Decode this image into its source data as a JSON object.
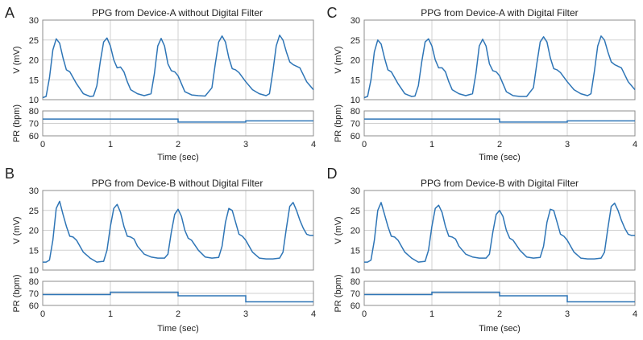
{
  "figure": {
    "colors": {
      "line": "#2e75b6",
      "grid": "#d0d0d0",
      "axis": "#8c8c8c",
      "text": "#222222"
    }
  },
  "chart_data": [
    {
      "panel": "A",
      "type": "line",
      "title": "PPG from Device-A without Digital Filter",
      "ppg": {
        "ylabel": "V (mV)",
        "ylim": [
          10,
          30
        ],
        "yticks": [
          10,
          15,
          20,
          25,
          30
        ],
        "x": [
          0,
          0.05,
          0.1,
          0.15,
          0.2,
          0.25,
          0.3,
          0.35,
          0.4,
          0.5,
          0.6,
          0.7,
          0.75,
          0.8,
          0.85,
          0.9,
          0.95,
          1.0,
          1.05,
          1.1,
          1.15,
          1.2,
          1.25,
          1.3,
          1.4,
          1.5,
          1.6,
          1.65,
          1.7,
          1.75,
          1.8,
          1.85,
          1.9,
          1.95,
          2.0,
          2.05,
          2.1,
          2.2,
          2.3,
          2.4,
          2.5,
          2.55,
          2.6,
          2.65,
          2.7,
          2.75,
          2.8,
          2.85,
          2.9,
          3.0,
          3.1,
          3.2,
          3.3,
          3.35,
          3.4,
          3.45,
          3.5,
          3.55,
          3.6,
          3.65,
          3.7,
          3.8,
          3.9,
          4.0
        ],
        "values": [
          10.5,
          10.8,
          15.5,
          22.5,
          25.3,
          24.2,
          20.5,
          17.5,
          17.0,
          14.0,
          11.5,
          10.8,
          10.9,
          13.5,
          19.5,
          24.5,
          25.5,
          23.5,
          20.0,
          18.0,
          18.2,
          17.0,
          14.5,
          12.5,
          11.5,
          11.0,
          11.5,
          16.5,
          23.5,
          25.4,
          23.5,
          19.0,
          17.3,
          17.0,
          16.0,
          14.0,
          12.0,
          11.2,
          11.0,
          10.9,
          13.0,
          19.0,
          24.5,
          26.0,
          24.5,
          20.5,
          17.8,
          17.5,
          16.8,
          14.5,
          12.5,
          11.5,
          11.0,
          11.5,
          17.0,
          23.5,
          26.2,
          25.0,
          22.0,
          19.5,
          18.8,
          18.0,
          14.5,
          12.5
        ]
      },
      "pr": {
        "ylabel": "PR (bpm)",
        "ylim": [
          60,
          80
        ],
        "yticks": [
          60,
          70,
          80
        ],
        "segments": [
          {
            "from": 0,
            "to": 2,
            "value": 73.5
          },
          {
            "from": 2,
            "to": 3,
            "value": 71
          },
          {
            "from": 3,
            "to": 4,
            "value": 72
          }
        ]
      },
      "xlabel": "Time (sec)",
      "xlim": [
        0,
        4
      ],
      "xticks": [
        0,
        1,
        2,
        3,
        4
      ]
    },
    {
      "panel": "C",
      "type": "line",
      "title": "PPG from Device-A with Digital Filter",
      "ppg": {
        "ylabel": "V (mV)",
        "ylim": [
          10,
          30
        ],
        "yticks": [
          10,
          15,
          20,
          25,
          30
        ],
        "x": [
          0,
          0.05,
          0.1,
          0.15,
          0.2,
          0.25,
          0.3,
          0.35,
          0.4,
          0.5,
          0.6,
          0.7,
          0.75,
          0.8,
          0.85,
          0.9,
          0.95,
          1.0,
          1.05,
          1.1,
          1.15,
          1.2,
          1.25,
          1.3,
          1.4,
          1.5,
          1.6,
          1.65,
          1.7,
          1.75,
          1.8,
          1.85,
          1.9,
          1.95,
          2.0,
          2.05,
          2.1,
          2.2,
          2.3,
          2.4,
          2.5,
          2.55,
          2.6,
          2.65,
          2.7,
          2.75,
          2.8,
          2.85,
          2.9,
          3.0,
          3.1,
          3.2,
          3.3,
          3.35,
          3.4,
          3.45,
          3.5,
          3.55,
          3.6,
          3.65,
          3.7,
          3.8,
          3.9,
          4.0
        ],
        "values": [
          10.5,
          10.8,
          15.0,
          22.0,
          25.0,
          24.0,
          20.5,
          17.5,
          17.0,
          14.0,
          11.5,
          10.8,
          10.9,
          13.5,
          19.5,
          24.5,
          25.3,
          23.5,
          20.0,
          18.0,
          18.0,
          17.0,
          14.5,
          12.5,
          11.5,
          11.0,
          11.5,
          16.5,
          23.5,
          25.2,
          23.5,
          19.0,
          17.3,
          17.0,
          16.0,
          14.0,
          12.0,
          11.0,
          10.8,
          10.8,
          13.0,
          19.0,
          24.5,
          25.8,
          24.5,
          20.5,
          17.8,
          17.5,
          16.8,
          14.5,
          12.5,
          11.5,
          11.0,
          11.5,
          17.0,
          23.5,
          26.0,
          25.0,
          22.0,
          19.5,
          18.8,
          18.0,
          14.5,
          12.5
        ]
      },
      "pr": {
        "ylabel": "PR (bpm)",
        "ylim": [
          60,
          80
        ],
        "yticks": [
          60,
          70,
          80
        ],
        "segments": [
          {
            "from": 0,
            "to": 2,
            "value": 73.5
          },
          {
            "from": 2,
            "to": 3,
            "value": 71
          },
          {
            "from": 3,
            "to": 4,
            "value": 72
          }
        ]
      },
      "xlabel": "Time (sec)",
      "xlim": [
        0,
        4
      ],
      "xticks": [
        0,
        1,
        2,
        3,
        4
      ]
    },
    {
      "panel": "B",
      "type": "line",
      "title": "PPG from Device-B without Digital Filter",
      "ppg": {
        "ylabel": "V (mV)",
        "ylim": [
          10,
          30
        ],
        "yticks": [
          10,
          15,
          20,
          25,
          30
        ],
        "x": [
          0,
          0.05,
          0.1,
          0.15,
          0.2,
          0.25,
          0.3,
          0.35,
          0.4,
          0.45,
          0.5,
          0.6,
          0.7,
          0.8,
          0.9,
          0.95,
          1.0,
          1.05,
          1.1,
          1.15,
          1.2,
          1.25,
          1.3,
          1.35,
          1.4,
          1.5,
          1.6,
          1.7,
          1.8,
          1.85,
          1.9,
          1.95,
          2.0,
          2.05,
          2.1,
          2.15,
          2.2,
          2.3,
          2.4,
          2.5,
          2.6,
          2.65,
          2.7,
          2.75,
          2.8,
          2.85,
          2.9,
          2.95,
          3.0,
          3.1,
          3.2,
          3.3,
          3.4,
          3.5,
          3.55,
          3.6,
          3.65,
          3.7,
          3.75,
          3.8,
          3.85,
          3.9,
          3.95,
          4.0
        ],
        "values": [
          12.0,
          12.0,
          12.5,
          17.5,
          25.5,
          27.3,
          24.0,
          21.0,
          18.5,
          18.3,
          17.5,
          14.5,
          13.0,
          12.0,
          12.2,
          15.0,
          21.0,
          25.5,
          26.5,
          24.5,
          21.0,
          18.5,
          18.3,
          17.8,
          16.0,
          14.0,
          13.3,
          13.0,
          13.0,
          14.0,
          19.5,
          24.0,
          25.3,
          23.5,
          20.0,
          18.0,
          17.5,
          15.0,
          13.3,
          13.0,
          13.2,
          16.0,
          22.0,
          25.5,
          25.0,
          22.0,
          19.0,
          18.5,
          17.5,
          14.5,
          13.0,
          12.8,
          12.8,
          13.0,
          14.5,
          20.5,
          26.0,
          27.0,
          25.0,
          22.5,
          20.5,
          19.0,
          18.7,
          18.7
        ]
      },
      "pr": {
        "ylabel": "PR (bpm)",
        "ylim": [
          60,
          80
        ],
        "yticks": [
          60,
          70,
          80
        ],
        "segments": [
          {
            "from": 0,
            "to": 1,
            "value": 69
          },
          {
            "from": 1,
            "to": 2,
            "value": 71
          },
          {
            "from": 2,
            "to": 3,
            "value": 68
          },
          {
            "from": 3,
            "to": 4,
            "value": 63
          }
        ]
      },
      "xlabel": "Time (sec)",
      "xlim": [
        0,
        4
      ],
      "xticks": [
        0,
        1,
        2,
        3,
        4
      ]
    },
    {
      "panel": "D",
      "type": "line",
      "title": "PPG from Device-B with Digital Filter",
      "ppg": {
        "ylabel": "V (mV)",
        "ylim": [
          10,
          30
        ],
        "yticks": [
          10,
          15,
          20,
          25,
          30
        ],
        "x": [
          0,
          0.05,
          0.1,
          0.15,
          0.2,
          0.25,
          0.3,
          0.35,
          0.4,
          0.45,
          0.5,
          0.6,
          0.7,
          0.8,
          0.9,
          0.95,
          1.0,
          1.05,
          1.1,
          1.15,
          1.2,
          1.25,
          1.3,
          1.35,
          1.4,
          1.5,
          1.6,
          1.7,
          1.8,
          1.85,
          1.9,
          1.95,
          2.0,
          2.05,
          2.1,
          2.15,
          2.2,
          2.3,
          2.4,
          2.5,
          2.6,
          2.65,
          2.7,
          2.75,
          2.8,
          2.85,
          2.9,
          2.95,
          3.0,
          3.1,
          3.2,
          3.3,
          3.4,
          3.5,
          3.55,
          3.6,
          3.65,
          3.7,
          3.75,
          3.8,
          3.85,
          3.9,
          3.95,
          4.0
        ],
        "values": [
          12.0,
          12.0,
          12.5,
          17.5,
          25.0,
          27.0,
          24.0,
          21.0,
          18.5,
          18.3,
          17.5,
          14.5,
          13.0,
          12.0,
          12.2,
          15.0,
          21.0,
          25.5,
          26.3,
          24.5,
          21.0,
          18.5,
          18.3,
          17.8,
          16.0,
          14.0,
          13.3,
          13.0,
          13.0,
          14.0,
          19.5,
          24.0,
          25.0,
          23.5,
          20.0,
          18.0,
          17.5,
          15.0,
          13.3,
          13.0,
          13.2,
          16.0,
          22.0,
          25.3,
          25.0,
          22.0,
          19.0,
          18.5,
          17.5,
          14.5,
          13.0,
          12.8,
          12.8,
          13.0,
          14.5,
          20.5,
          26.0,
          26.8,
          25.0,
          22.5,
          20.5,
          19.0,
          18.7,
          18.7
        ]
      },
      "pr": {
        "ylabel": "PR (bpm)",
        "ylim": [
          60,
          80
        ],
        "yticks": [
          60,
          70,
          80
        ],
        "segments": [
          {
            "from": 0,
            "to": 1,
            "value": 69
          },
          {
            "from": 1,
            "to": 2,
            "value": 71
          },
          {
            "from": 2,
            "to": 3,
            "value": 68
          },
          {
            "from": 3,
            "to": 4,
            "value": 63
          }
        ]
      },
      "xlabel": "Time (sec)",
      "xlim": [
        0,
        4
      ],
      "xticks": [
        0,
        1,
        2,
        3,
        4
      ]
    }
  ]
}
